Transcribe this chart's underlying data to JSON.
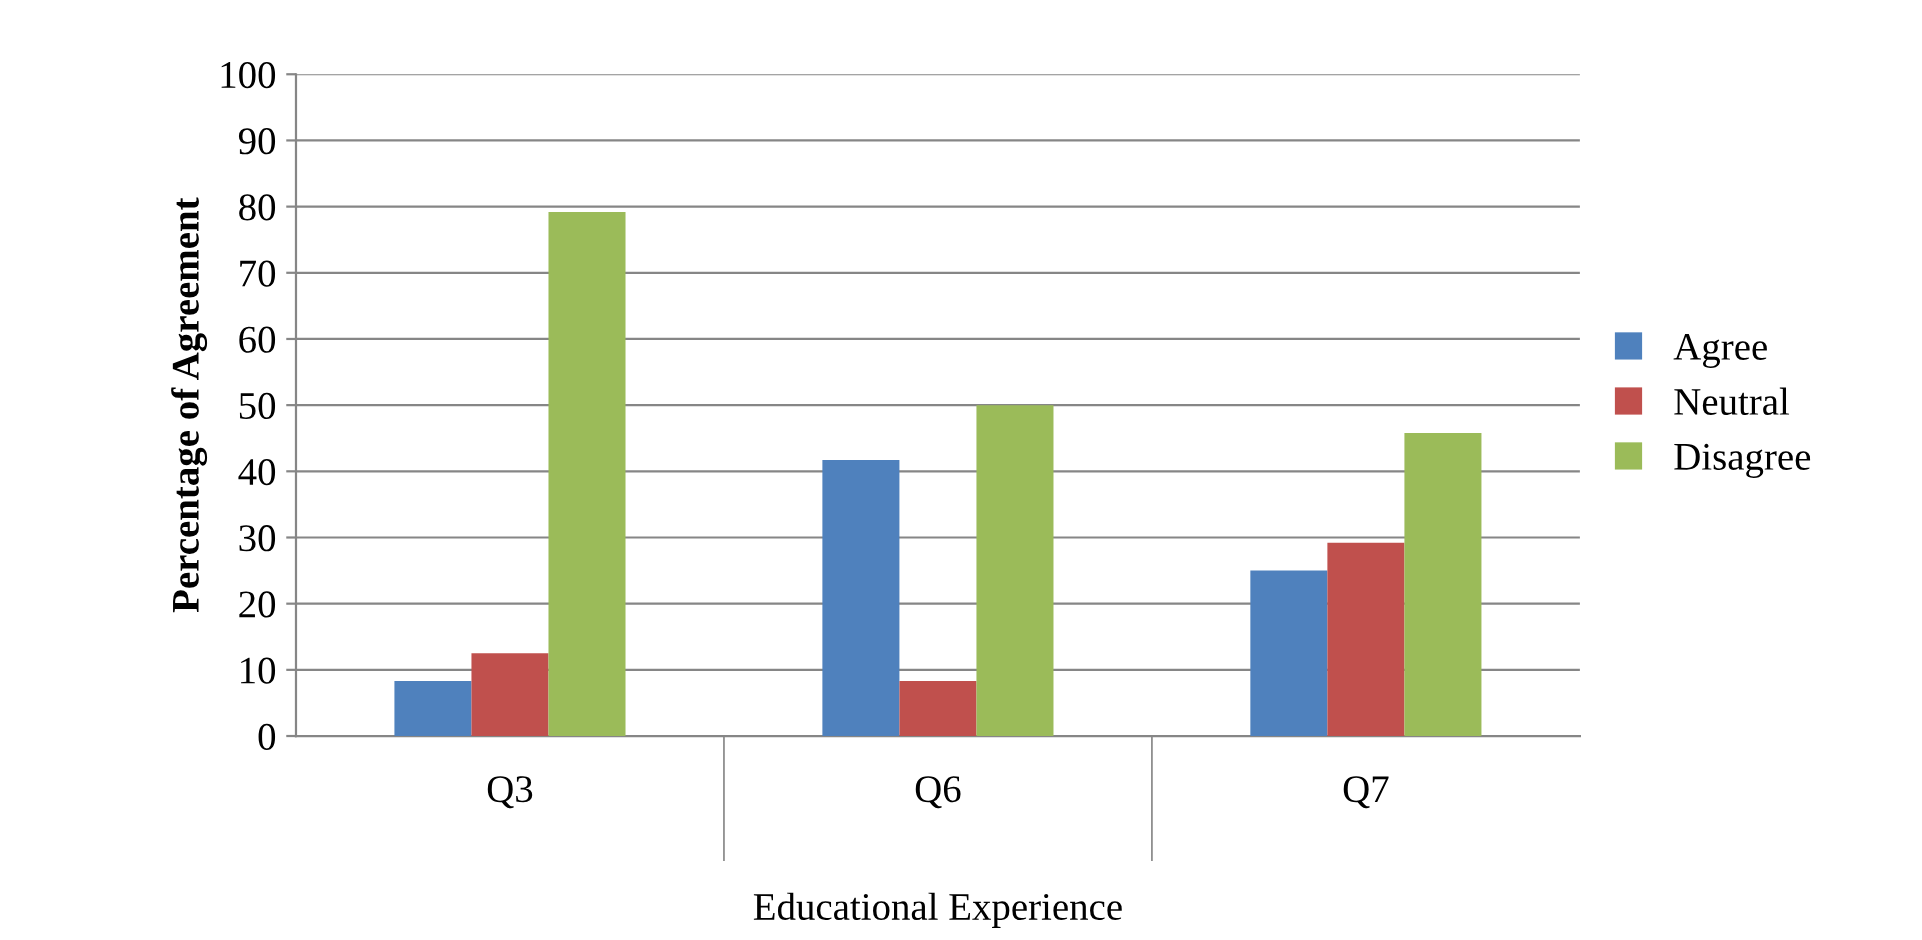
{
  "chart_data": {
    "type": "bar",
    "xlabel": "Educational Experience",
    "ylabel": "Percentage of Agreement",
    "categories": [
      "Q3",
      "Q6",
      "Q7"
    ],
    "series": [
      {
        "name": "Agree",
        "color": "#4f81bd",
        "values": [
          8.3,
          41.7,
          25
        ]
      },
      {
        "name": "Neutral",
        "color": "#c0504d",
        "values": [
          12.5,
          8.3,
          29.2
        ]
      },
      {
        "name": "Disagree",
        "color": "#9bbb59",
        "values": [
          79.2,
          50,
          45.8
        ]
      }
    ],
    "ylim": [
      0,
      100
    ],
    "yticks": [
      0,
      10,
      20,
      30,
      40,
      50,
      60,
      70,
      80,
      90,
      100
    ],
    "grid": "y",
    "legend": "right"
  }
}
